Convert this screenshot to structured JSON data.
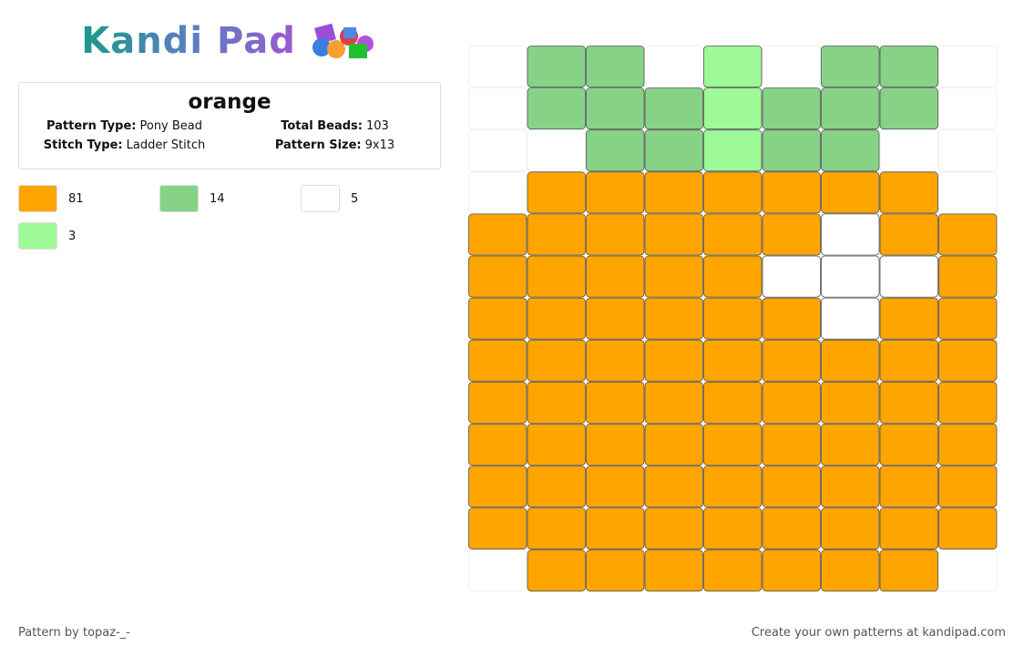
{
  "logo": {
    "text": "Kandi Pad"
  },
  "header": {
    "title": "orange",
    "info": [
      {
        "label": "Pattern Type:",
        "value": "Pony Bead"
      },
      {
        "label": "Total Beads:",
        "value": "103"
      },
      {
        "label": "Stitch Type:",
        "value": "Ladder Stitch"
      },
      {
        "label": "Pattern Size:",
        "value": "9x13"
      }
    ]
  },
  "legend": [
    {
      "color": "#ffa500",
      "count": 81
    },
    {
      "color": "#86d387",
      "count": 14
    },
    {
      "color": "#ffffff",
      "count": 5
    },
    {
      "color": "#9efa96",
      "count": 3
    }
  ],
  "grid": {
    "rows": [
      [
        null,
        1,
        1,
        null,
        3,
        null,
        1,
        1,
        null
      ],
      [
        null,
        1,
        1,
        1,
        3,
        1,
        1,
        1,
        null
      ],
      [
        null,
        null,
        1,
        1,
        3,
        1,
        1,
        null,
        null
      ],
      [
        null,
        0,
        0,
        0,
        0,
        0,
        0,
        0,
        null
      ],
      [
        0,
        0,
        0,
        0,
        0,
        0,
        2,
        0,
        0
      ],
      [
        0,
        0,
        0,
        0,
        0,
        2,
        2,
        2,
        0
      ],
      [
        0,
        0,
        0,
        0,
        0,
        0,
        2,
        0,
        0
      ],
      [
        0,
        0,
        0,
        0,
        0,
        0,
        0,
        0,
        0
      ],
      [
        0,
        0,
        0,
        0,
        0,
        0,
        0,
        0,
        0
      ],
      [
        0,
        0,
        0,
        0,
        0,
        0,
        0,
        0,
        0
      ],
      [
        0,
        0,
        0,
        0,
        0,
        0,
        0,
        0,
        0
      ],
      [
        0,
        0,
        0,
        0,
        0,
        0,
        0,
        0,
        0
      ],
      [
        null,
        0,
        0,
        0,
        0,
        0,
        0,
        0,
        null
      ]
    ]
  },
  "footer": {
    "credit": "Pattern by topaz-_-",
    "promo": "Create your own patterns at kandipad.com"
  }
}
